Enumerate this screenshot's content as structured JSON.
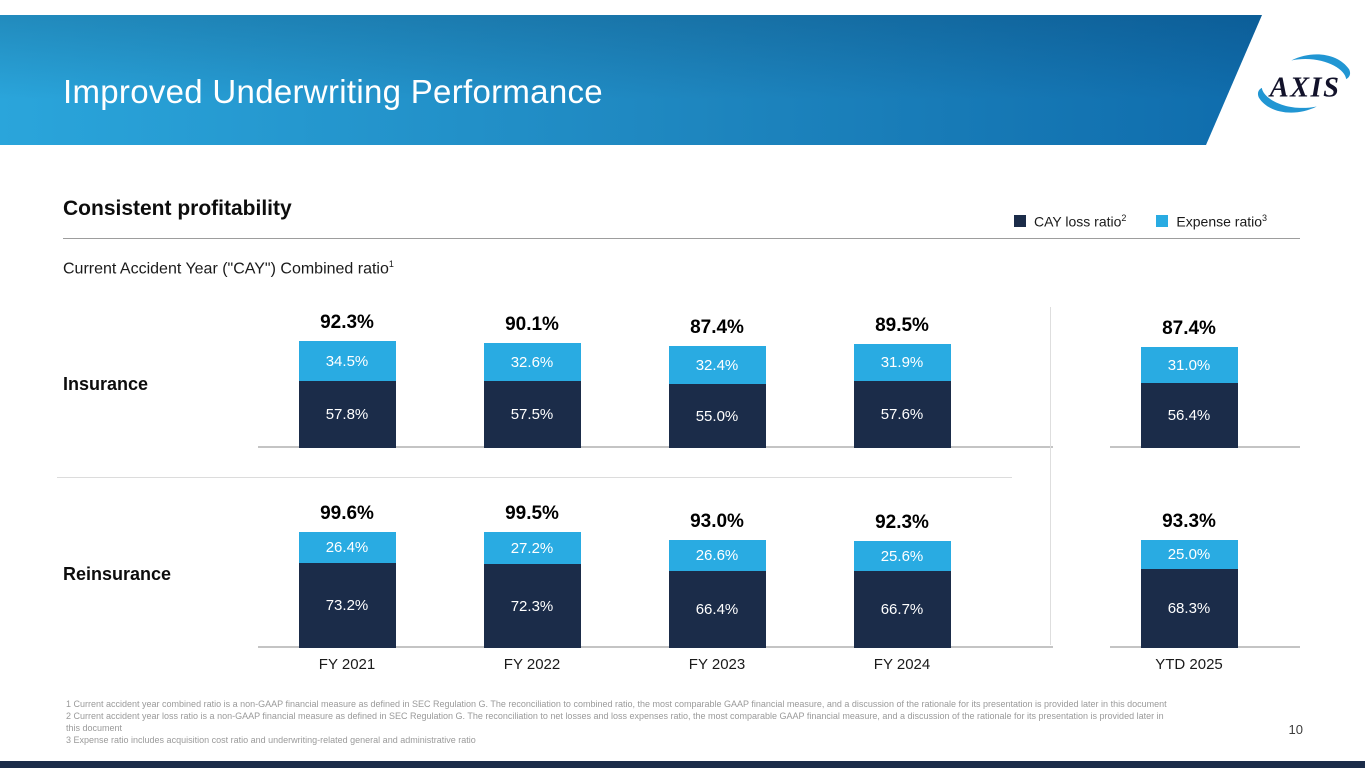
{
  "slide": {
    "title": "Improved Underwriting Performance",
    "logo": {
      "text": "AXIS"
    },
    "heading": "Consistent profitability",
    "subtitle": {
      "text": "Current Accident Year (\"CAY\") Combined ratio",
      "sup": "1"
    },
    "legend": [
      {
        "label": "CAY loss ratio",
        "sup": "2",
        "color": "#1B2C49"
      },
      {
        "label": "Expense ratio",
        "sup": "3",
        "color": "#29ABE2"
      }
    ],
    "footnotes": [
      "1 Current accident year combined ratio is a non-GAAP financial measure as defined in SEC Regulation G. The reconciliation to combined ratio, the most comparable GAAP financial measure, and a discussion of the rationale for its presentation is provided later in this document",
      "2 Current accident year loss ratio is a non-GAAP financial measure as defined in SEC Regulation G. The reconciliation to net losses and loss expenses ratio, the most comparable GAAP financial measure, and a discussion of the rationale for its presentation is provided later in\nthis document",
      "3 Expense ratio includes acquisition cost ratio and underwriting-related general and administrative ratio"
    ],
    "page_number": "10"
  },
  "chart_data": {
    "type": "bar",
    "stacked": true,
    "unit": "%",
    "legend_position": "top-right",
    "categories": [
      "FY 2021",
      "FY 2022",
      "FY 2023",
      "FY 2024",
      "YTD 2025"
    ],
    "groups": [
      {
        "label": "Insurance",
        "totals": [
          92.3,
          90.1,
          87.4,
          89.5,
          87.4
        ],
        "series": [
          {
            "name": "CAY loss ratio",
            "color": "#1B2C49",
            "values": [
              57.8,
              57.5,
              55.0,
              57.6,
              56.4
            ]
          },
          {
            "name": "Expense ratio",
            "color": "#29ABE2",
            "values": [
              34.5,
              32.6,
              32.4,
              31.9,
              31.0
            ]
          }
        ]
      },
      {
        "label": "Reinsurance",
        "totals": [
          99.6,
          99.5,
          93.0,
          92.3,
          93.3
        ],
        "series": [
          {
            "name": "CAY loss ratio",
            "color": "#1B2C49",
            "values": [
              73.2,
              72.3,
              66.4,
              66.7,
              68.3
            ]
          },
          {
            "name": "Expense ratio",
            "color": "#29ABE2",
            "values": [
              26.4,
              27.2,
              26.6,
              25.6,
              25.0
            ]
          }
        ]
      }
    ]
  }
}
